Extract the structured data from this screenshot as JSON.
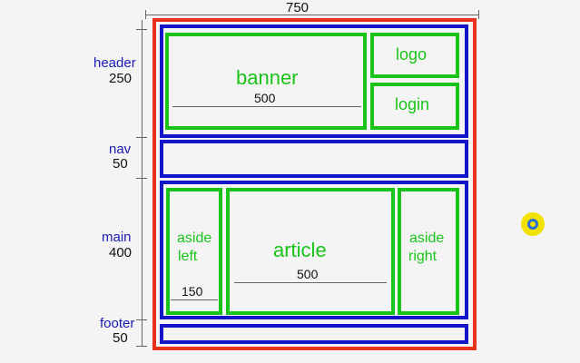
{
  "dimensions": {
    "total_width": "750",
    "rows": [
      {
        "name": "header",
        "value": "250"
      },
      {
        "name": "nav",
        "value": "50"
      },
      {
        "name": "main",
        "value": "400"
      },
      {
        "name": "footer",
        "value": "50"
      }
    ]
  },
  "header": {
    "banner": {
      "label": "banner",
      "width": "500"
    },
    "logo": "logo",
    "login": "login"
  },
  "main": {
    "aside_left": {
      "line1": "aside",
      "line2": "left",
      "width": "150"
    },
    "article": {
      "label": "article",
      "width": "500"
    },
    "aside_right": {
      "line1": "aside",
      "line2": "right"
    }
  },
  "colors": {
    "outer": "#e8321e",
    "section": "#1414c8",
    "block": "#18c418",
    "cursor": "#f2e200"
  }
}
